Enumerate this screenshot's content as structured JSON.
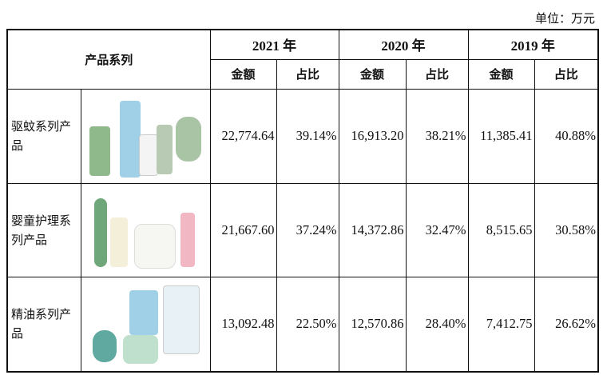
{
  "unit_label": "单位：万元",
  "header": {
    "series_label": "产品系列",
    "years": [
      "2021 年",
      "2020 年",
      "2019 年"
    ],
    "amount_label": "金额",
    "share_label": "占比"
  },
  "rows": [
    {
      "name": "驱蚊系列产品",
      "image": "mosquito-repellent-products",
      "values": [
        "22,774.64",
        "39.14%",
        "16,913.20",
        "38.21%",
        "11,385.41",
        "40.88%"
      ]
    },
    {
      "name": "婴童护理系列产品",
      "image": "baby-care-products",
      "values": [
        "21,667.60",
        "37.24%",
        "14,372.86",
        "32.47%",
        "8,515.65",
        "30.58%"
      ]
    },
    {
      "name": "精油系列产品",
      "image": "essential-oil-products",
      "values": [
        "13,092.48",
        "22.50%",
        "12,570.86",
        "28.40%",
        "7,412.75",
        "26.62%"
      ]
    }
  ],
  "colors": {
    "product_green": "#8fb98a",
    "product_blue": "#9fd0e8",
    "product_pink": "#f1b8c4"
  }
}
